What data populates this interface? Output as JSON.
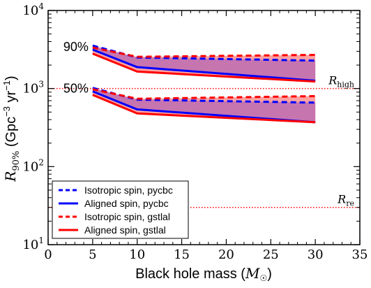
{
  "chart_data": {
    "type": "line",
    "xlabel": "Black hole mass (M☉)",
    "ylabel": "R90% (Gpc⁻³ yr⁻¹)",
    "xscale": "linear",
    "yscale": "log",
    "xlim": [
      0,
      35
    ],
    "ylim": [
      10,
      10000
    ],
    "x_ticks": [
      0,
      5,
      10,
      15,
      20,
      25,
      30,
      35
    ],
    "y_ticks": [
      10,
      100,
      1000,
      10000
    ],
    "y_tick_labels": [
      {
        "base": "10",
        "exp": "1"
      },
      {
        "base": "10",
        "exp": "2"
      },
      {
        "base": "10",
        "exp": "3"
      },
      {
        "base": "10",
        "exp": "4"
      }
    ],
    "grid": false,
    "legend_position": "lower-left",
    "x": [
      5,
      10,
      30
    ],
    "groups": [
      {
        "label": "90%",
        "series": [
          {
            "name": "Isotropic spin, pycbc",
            "color": "#0000ff",
            "style": "dashed",
            "values": [
              3550,
              2500,
              2280
            ]
          },
          {
            "name": "Aligned spin, pycbc",
            "color": "#0000ff",
            "style": "solid",
            "values": [
              3150,
              1880,
              1260
            ]
          },
          {
            "name": "Isotropic spin, gstlal",
            "color": "#ff0000",
            "style": "dashed",
            "values": [
              3350,
              2550,
              2700
            ]
          },
          {
            "name": "Aligned spin, gstlal",
            "color": "#ff0000",
            "style": "solid",
            "values": [
              2800,
              1650,
              1230
            ]
          }
        ]
      },
      {
        "label": "50%",
        "series": [
          {
            "name": "Isotropic spin, pycbc",
            "color": "#0000ff",
            "style": "dashed",
            "values": [
              1020,
              720,
              660
            ]
          },
          {
            "name": "Aligned spin, pycbc",
            "color": "#0000ff",
            "style": "solid",
            "values": [
              920,
              540,
              370
            ]
          },
          {
            "name": "Isotropic spin, gstlal",
            "color": "#ff0000",
            "style": "dashed",
            "values": [
              980,
              740,
              800
            ]
          },
          {
            "name": "Aligned spin, gstlal",
            "color": "#ff0000",
            "style": "solid",
            "values": [
              830,
              480,
              370
            ]
          }
        ]
      }
    ],
    "band_colors": {
      "purple": "#c070b0",
      "pink": "#ff9090"
    },
    "reference_lines": [
      {
        "name": "R_high",
        "value": 1000,
        "color": "#ff0000",
        "style": "dotted",
        "label_base": "R",
        "label_sub": "high"
      },
      {
        "name": "R_re",
        "value": 30,
        "color": "#ff0000",
        "style": "dotted",
        "label_base": "R",
        "label_sub": "re"
      }
    ],
    "legend": [
      {
        "label": "Isotropic spin, pycbc",
        "color": "#0000ff",
        "style": "dashed"
      },
      {
        "label": "Aligned spin, pycbc",
        "color": "#0000ff",
        "style": "solid"
      },
      {
        "label": "Isotropic spin, gstlal",
        "color": "#ff0000",
        "style": "dashed"
      },
      {
        "label": "Aligned spin, gstlal",
        "color": "#ff0000",
        "style": "solid"
      }
    ]
  }
}
